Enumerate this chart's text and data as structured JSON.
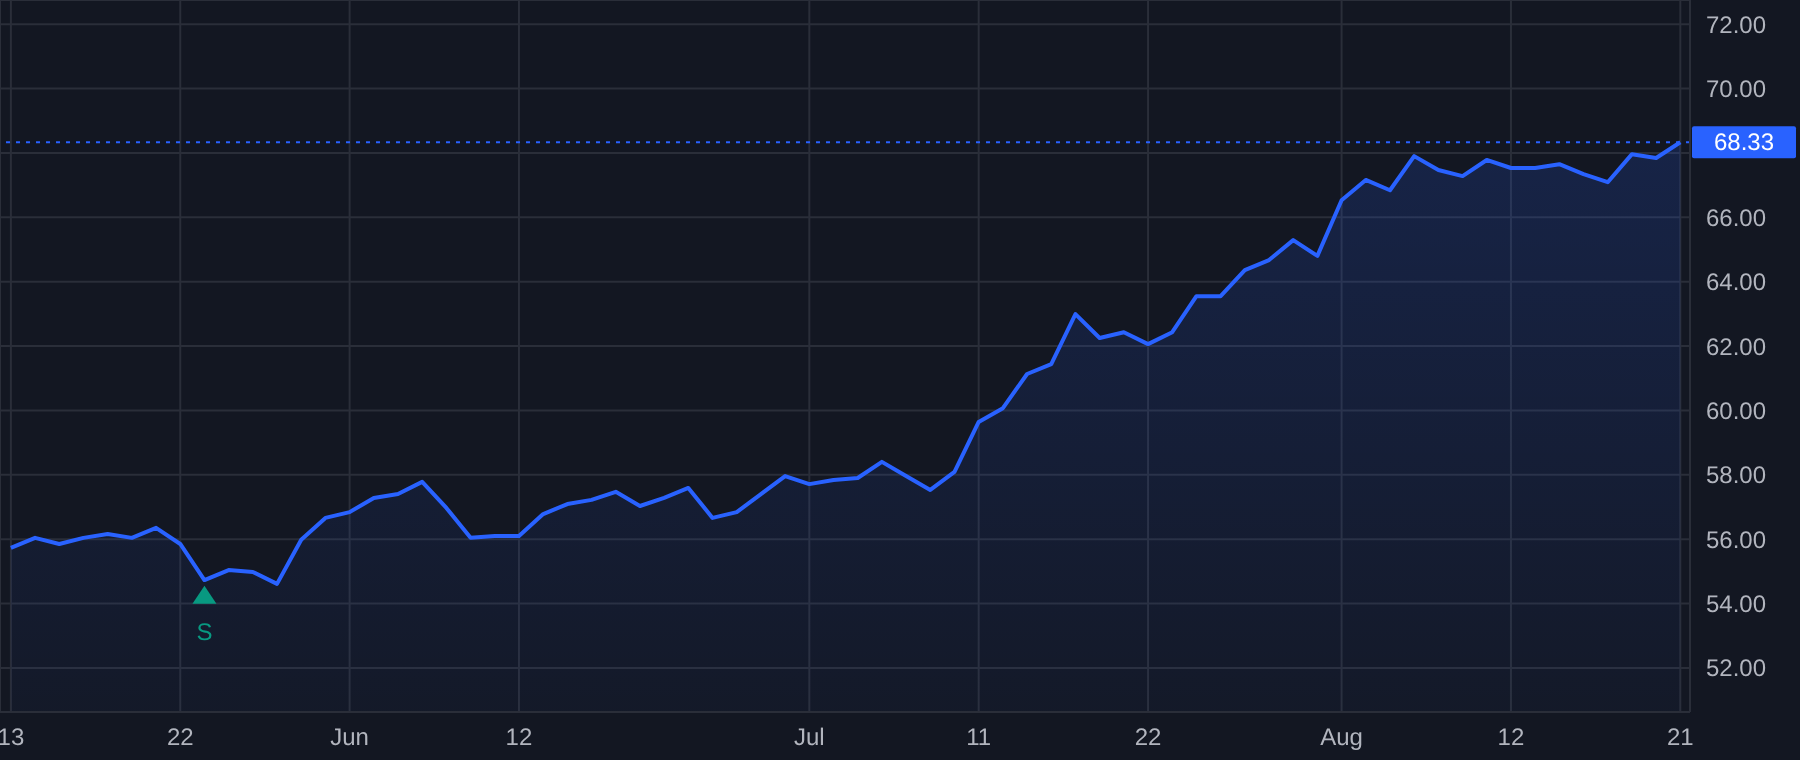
{
  "chart_data": {
    "type": "area",
    "categories": [
      "13",
      null,
      null,
      null,
      null,
      null,
      null,
      "22",
      null,
      null,
      null,
      null,
      null,
      null,
      "Jun",
      null,
      null,
      null,
      null,
      null,
      null,
      "12",
      null,
      null,
      null,
      null,
      null,
      null,
      null,
      null,
      null,
      null,
      null,
      "Jul",
      null,
      null,
      null,
      null,
      null,
      null,
      "11",
      null,
      null,
      null,
      null,
      null,
      null,
      "22",
      null,
      null,
      null,
      null,
      null,
      null,
      null,
      "Aug",
      null,
      null,
      null,
      null,
      null,
      null,
      "12",
      null,
      null,
      null,
      null,
      null,
      null,
      "21"
    ],
    "series": [
      {
        "type": "area",
        "color": "#2962ff",
        "marker": "none",
        "values": [
          55.73,
          56.04,
          55.85,
          56.04,
          56.16,
          56.04,
          56.35,
          55.85,
          54.73,
          55.04,
          54.98,
          54.61,
          55.98,
          56.66,
          56.84,
          57.28,
          57.4,
          57.78,
          56.97,
          56.04,
          56.1,
          56.1,
          56.78,
          57.09,
          57.22,
          57.47,
          57.03,
          57.28,
          57.59,
          56.66,
          56.84,
          57.4,
          57.96,
          57.71,
          57.84,
          57.9,
          58.4,
          57.96,
          57.53,
          58.09,
          59.64,
          60.07,
          61.13,
          61.44,
          62.99,
          62.25,
          62.43,
          62.06,
          62.43,
          63.55,
          63.55,
          64.36,
          64.67,
          65.29,
          64.8,
          66.53,
          67.16,
          66.84,
          67.9,
          67.47,
          67.28,
          67.78,
          67.53,
          67.53,
          67.65,
          67.34,
          67.09,
          67.96,
          67.84,
          68.33
        ]
      },
      {
        "type": "scatter",
        "color": "#089981",
        "marker": "triangle",
        "values": [
          null,
          null,
          null,
          null,
          null,
          null,
          null,
          null,
          54.24,
          null,
          null,
          null,
          null,
          null,
          null,
          null,
          null,
          null,
          null,
          null,
          null,
          null,
          null,
          null,
          null,
          null,
          null,
          null,
          null,
          null,
          null,
          null,
          null,
          null,
          null,
          null,
          null,
          null,
          null,
          null,
          null,
          null,
          null,
          null,
          null,
          null,
          null,
          null,
          null,
          null,
          null,
          null,
          null,
          null,
          null,
          null,
          null,
          null,
          null,
          null,
          null,
          null,
          null,
          null,
          null,
          null,
          null,
          null,
          null,
          null
        ],
        "value_labels": [
          null,
          null,
          null,
          null,
          null,
          null,
          null,
          null,
          "S",
          null,
          null,
          null,
          null,
          null,
          null,
          null,
          null,
          null,
          null,
          null,
          null,
          null,
          null,
          null,
          null,
          null,
          null,
          null,
          null,
          null,
          null,
          null,
          null,
          null,
          null,
          null,
          null,
          null,
          null,
          null,
          null,
          null,
          null,
          null,
          null,
          null,
          null,
          null,
          null,
          null,
          null,
          null,
          null,
          null,
          null,
          null,
          null,
          null,
          null,
          null,
          null,
          null,
          null,
          null,
          null,
          null,
          null,
          null,
          null,
          null
        ]
      }
    ],
    "ylim": [
      50.63,
      72.75
    ],
    "yticks": [
      {
        "value": 52,
        "label": "52.00"
      },
      {
        "value": 54,
        "label": "54.00"
      },
      {
        "value": 56,
        "label": "56.00"
      },
      {
        "value": 58,
        "label": "58.00"
      },
      {
        "value": 60,
        "label": "60.00"
      },
      {
        "value": 62,
        "label": "62.00"
      },
      {
        "value": 64,
        "label": "64.00"
      },
      {
        "value": 66,
        "label": "66.00"
      },
      {
        "value": 68,
        "label": null
      },
      {
        "value": 70,
        "label": "70.00"
      },
      {
        "value": 72,
        "label": "72.00"
      }
    ],
    "grid": true,
    "ref_lines": [
      {
        "axis": "y",
        "value": 68.33,
        "label": "68.33",
        "color": "#2962ff",
        "line_style": "dotted"
      }
    ]
  }
}
